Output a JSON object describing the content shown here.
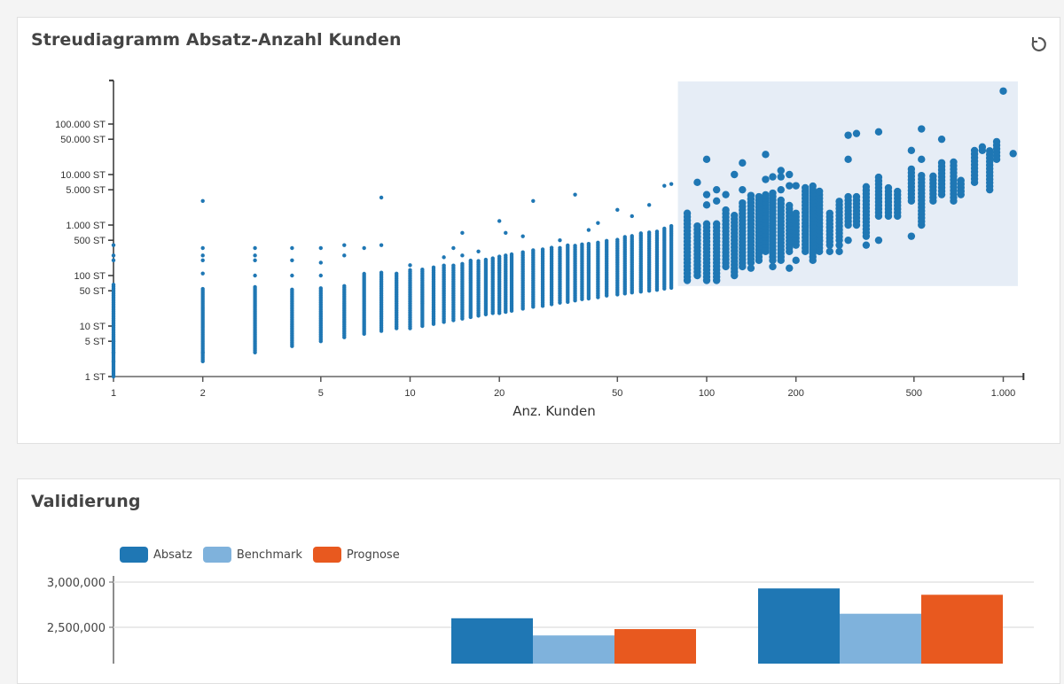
{
  "scatter_card": {
    "title": "Streudiagramm Absatz-Anzahl Kunden",
    "refresh_icon": "refresh-icon"
  },
  "bar_card": {
    "title": "Validierung"
  },
  "colors": {
    "point": "#1f77b4",
    "selection": "#e6edf6",
    "absatz": "#1f77b4",
    "benchmark": "#7fb2dc",
    "prognose": "#e8591f"
  },
  "chart_data": [
    {
      "type": "scatter",
      "title": "Streudiagramm Absatz-Anzahl Kunden",
      "xlabel": "Anz. Kunden",
      "ylabel": "",
      "x_scale": "log",
      "y_scale": "log",
      "xlim": [
        1,
        1170
      ],
      "ylim": [
        1,
        730000
      ],
      "x_ticks": [
        {
          "v": 1,
          "label": "1"
        },
        {
          "v": 2,
          "label": "2"
        },
        {
          "v": 5,
          "label": "5"
        },
        {
          "v": 10,
          "label": "10"
        },
        {
          "v": 20,
          "label": "20"
        },
        {
          "v": 50,
          "label": "50"
        },
        {
          "v": 100,
          "label": "100"
        },
        {
          "v": 200,
          "label": "200"
        },
        {
          "v": 500,
          "label": "500"
        },
        {
          "v": 1000,
          "label": "1.000"
        }
      ],
      "y_ticks": [
        {
          "v": 1,
          "label": "1 ST"
        },
        {
          "v": 5,
          "label": "5 ST"
        },
        {
          "v": 10,
          "label": "10 ST"
        },
        {
          "v": 50,
          "label": "50 ST"
        },
        {
          "v": 100,
          "label": "100 ST"
        },
        {
          "v": 500,
          "label": "500 ST"
        },
        {
          "v": 1000,
          "label": "1.000 ST"
        },
        {
          "v": 5000,
          "label": "5.000 ST"
        },
        {
          "v": 10000,
          "label": "10.000 ST"
        },
        {
          "v": 50000,
          "label": "50.000 ST"
        },
        {
          "v": 100000,
          "label": "100.000 ST"
        }
      ],
      "grid": false,
      "selection": {
        "x": [
          80,
          1120
        ],
        "y": [
          62,
          700000
        ]
      },
      "columns_note_format": "[x, y_min, y_max, [isolated y values]]",
      "columns": [
        [
          1,
          1,
          70,
          [
            2,
            3,
            5,
            200,
            250,
            400
          ]
        ],
        [
          2,
          2,
          55,
          [
            3,
            110,
            200,
            250,
            350,
            3000
          ]
        ],
        [
          3,
          3,
          60,
          [
            100,
            200,
            250,
            350
          ]
        ],
        [
          4,
          4,
          55,
          [
            100,
            200,
            350
          ]
        ],
        [
          5,
          5,
          60,
          [
            100,
            180,
            350
          ]
        ],
        [
          6,
          6,
          65,
          [
            250,
            400
          ]
        ],
        [
          7,
          7,
          110,
          [
            350
          ]
        ],
        [
          8,
          8,
          120,
          [
            400,
            3500
          ]
        ],
        [
          9,
          9,
          110,
          []
        ],
        [
          10,
          9,
          130,
          [
            160
          ]
        ],
        [
          11,
          10,
          140,
          []
        ],
        [
          12,
          11,
          150,
          []
        ],
        [
          13,
          12,
          160,
          [
            230
          ]
        ],
        [
          14,
          13,
          170,
          [
            350
          ]
        ],
        [
          15,
          14,
          180,
          [
            250,
            700
          ]
        ],
        [
          16,
          15,
          200,
          []
        ],
        [
          17,
          16,
          210,
          [
            300
          ]
        ],
        [
          18,
          17,
          220,
          []
        ],
        [
          19,
          18,
          230,
          []
        ],
        [
          20,
          18,
          250,
          [
            1200
          ]
        ],
        [
          21,
          19,
          260,
          [
            700
          ]
        ],
        [
          22,
          20,
          270,
          []
        ],
        [
          24,
          22,
          300,
          [
            600
          ]
        ],
        [
          26,
          24,
          320,
          [
            3000
          ]
        ],
        [
          28,
          25,
          340,
          []
        ],
        [
          30,
          27,
          360,
          []
        ],
        [
          32,
          29,
          380,
          [
            500
          ]
        ],
        [
          34,
          30,
          400,
          []
        ],
        [
          36,
          32,
          420,
          [
            4000
          ]
        ],
        [
          38,
          34,
          440,
          []
        ],
        [
          40,
          35,
          460,
          [
            800
          ]
        ],
        [
          43,
          37,
          480,
          [
            1100
          ]
        ],
        [
          46,
          40,
          500,
          []
        ],
        [
          50,
          42,
          550,
          [
            2000
          ]
        ],
        [
          53,
          44,
          600,
          []
        ],
        [
          56,
          46,
          650,
          [
            1500
          ]
        ],
        [
          60,
          48,
          700,
          []
        ],
        [
          64,
          50,
          750,
          [
            2500
          ]
        ],
        [
          68,
          52,
          800,
          []
        ],
        [
          72,
          55,
          900,
          [
            6000
          ]
        ],
        [
          76,
          57,
          1000,
          [
            6500
          ]
        ],
        [
          86,
          80,
          1800,
          []
        ],
        [
          93,
          100,
          1000,
          [
            7000
          ]
        ],
        [
          100,
          80,
          1100,
          [
            2500,
            4000,
            20000
          ]
        ],
        [
          108,
          80,
          1200,
          [
            3000,
            5000
          ]
        ],
        [
          116,
          150,
          2000,
          [
            4000
          ]
        ],
        [
          124,
          100,
          1700,
          [
            10000
          ]
        ],
        [
          132,
          150,
          3000,
          [
            5000,
            17000
          ]
        ],
        [
          141,
          180,
          4000,
          [
            140
          ]
        ],
        [
          150,
          200,
          4000,
          []
        ],
        [
          158,
          300,
          4000,
          [
            8000,
            25000
          ]
        ],
        [
          167,
          200,
          5000,
          [
            150,
            9000
          ]
        ],
        [
          178,
          200,
          3500,
          [
            5000,
            9000,
            12000
          ]
        ],
        [
          190,
          300,
          2500,
          [
            140,
            6000,
            10000
          ]
        ],
        [
          200,
          400,
          2000,
          [
            200,
            6000
          ]
        ],
        [
          215,
          300,
          6000,
          []
        ],
        [
          228,
          200,
          6000,
          []
        ],
        [
          240,
          300,
          5000,
          [
            500
          ]
        ],
        [
          260,
          400,
          2000,
          [
            300
          ]
        ],
        [
          280,
          500,
          3000,
          [
            300,
            400
          ]
        ],
        [
          300,
          1000,
          4000,
          [
            500,
            20000,
            60000
          ]
        ],
        [
          320,
          1000,
          4000,
          [
            65000
          ]
        ],
        [
          345,
          600,
          6000,
          [
            400
          ]
        ],
        [
          380,
          1500,
          10000,
          [
            500,
            70000
          ]
        ],
        [
          410,
          1500,
          6000,
          []
        ],
        [
          440,
          1500,
          5000,
          []
        ],
        [
          490,
          3000,
          15000,
          [
            600,
            30000
          ]
        ],
        [
          530,
          1000,
          10000,
          [
            20000,
            80000
          ]
        ],
        [
          580,
          3000,
          10000,
          []
        ],
        [
          620,
          4000,
          20000,
          [
            50000
          ]
        ],
        [
          680,
          3000,
          20000,
          []
        ],
        [
          720,
          4000,
          8000,
          []
        ],
        [
          800,
          7000,
          30000,
          []
        ],
        [
          850,
          30000,
          40000,
          []
        ],
        [
          900,
          5000,
          30000,
          []
        ],
        [
          950,
          20000,
          50000,
          []
        ],
        [
          1000,
          450000,
          450000,
          []
        ],
        [
          1080,
          26000,
          26000,
          []
        ]
      ]
    },
    {
      "type": "bar",
      "title": "Validierung",
      "legend": [
        "Absatz",
        "Benchmark",
        "Prognose"
      ],
      "legend_position": "top-left",
      "y_ticks": [
        {
          "v": 3000000,
          "label": "3,000,000"
        },
        {
          "v": 2500000,
          "label": "2,500,000"
        }
      ],
      "grid": true,
      "categories": [
        "",
        "",
        ""
      ],
      "series": [
        {
          "name": "Absatz",
          "values": [
            null,
            2600000,
            2930000
          ]
        },
        {
          "name": "Benchmark",
          "values": [
            null,
            2410000,
            2650000
          ]
        },
        {
          "name": "Prognose",
          "values": [
            null,
            2480000,
            2860000
          ]
        }
      ]
    }
  ]
}
